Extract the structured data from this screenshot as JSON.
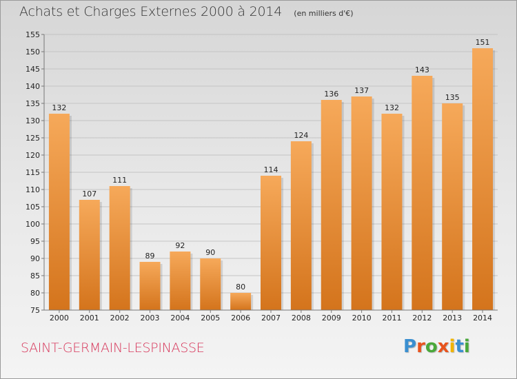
{
  "header": {
    "title": "Achats et Charges Externes 2000 à 2014",
    "unit": "(en milliers d'€)"
  },
  "footer": {
    "commune": "SAINT-GERMAIN-LESPINASSE",
    "logo": {
      "letters": [
        "P",
        "r",
        "o",
        "x",
        "i",
        "t",
        "i"
      ],
      "colors": [
        "#3a8fd0",
        "#e8531d",
        "#4aa83a",
        "#e8531d",
        "#f0b400",
        "#3a8fd0",
        "#4aa83a"
      ]
    }
  },
  "colors": {
    "bar_top": "#f6a95a",
    "bar_bottom": "#d4741c",
    "axis": "#777777",
    "grid": "#c4c4c4"
  },
  "chart_data": {
    "type": "bar",
    "categories": [
      "2000",
      "2001",
      "2002",
      "2003",
      "2004",
      "2005",
      "2006",
      "2007",
      "2008",
      "2009",
      "2010",
      "2011",
      "2012",
      "2013",
      "2014"
    ],
    "values": [
      132,
      107,
      111,
      89,
      92,
      90,
      80,
      114,
      124,
      136,
      137,
      132,
      143,
      135,
      151
    ],
    "ylim": [
      75,
      155
    ],
    "yticks": [
      75,
      80,
      85,
      90,
      95,
      100,
      105,
      110,
      115,
      120,
      125,
      130,
      135,
      140,
      145,
      150,
      155
    ],
    "grid": true,
    "data_labels": true
  }
}
